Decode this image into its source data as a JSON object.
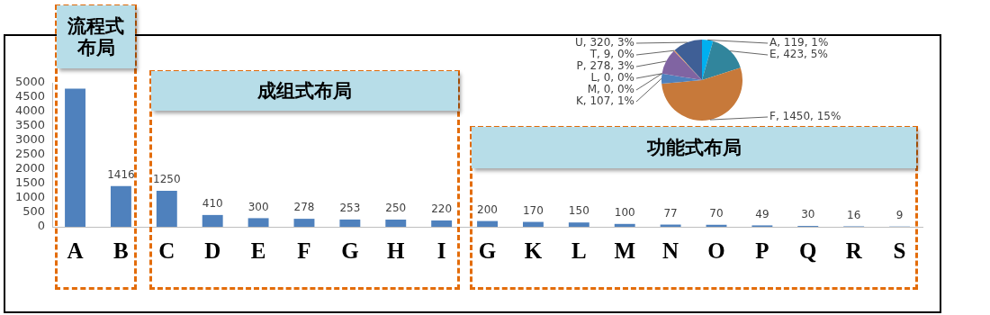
{
  "chart_data": [
    {
      "type": "bar",
      "categories": [
        "A",
        "B",
        "C",
        "D",
        "E",
        "F",
        "G",
        "H",
        "I",
        "G",
        "K",
        "L",
        "M",
        "N",
        "O",
        "P",
        "Q",
        "R",
        "S"
      ],
      "values": [
        4800,
        1416,
        1250,
        410,
        300,
        278,
        253,
        250,
        220,
        200,
        170,
        150,
        100,
        77,
        70,
        49,
        30,
        16,
        9
      ],
      "value_labels": [
        null,
        "1416",
        "1250",
        "410",
        "300",
        "278",
        "253",
        "250",
        "220",
        "200",
        "170",
        "150",
        "100",
        "77",
        "70",
        "49",
        "30",
        "16",
        "9"
      ],
      "color": "#4f81bd",
      "ylim": [
        0,
        5000
      ],
      "yticks": [
        0,
        500,
        1000,
        1500,
        2000,
        2500,
        3000,
        3500,
        4000,
        4500,
        5000
      ],
      "grid": false,
      "legend": false,
      "annotations": [
        "流程式布局",
        "成组式布局",
        "功能式布局"
      ]
    },
    {
      "type": "pie",
      "categories": [
        "A",
        "E",
        "F",
        "K",
        "L",
        "M",
        "P",
        "T",
        "U"
      ],
      "values": [
        119,
        423,
        1450,
        107,
        0,
        0,
        278,
        9,
        320
      ],
      "colors": [
        "#00b0f0",
        "#31859c",
        "#c7793a",
        "#4f81bd",
        "#4bacc6",
        "#2c4d75",
        "#8064a2",
        "#f79646",
        "#3f5f96"
      ],
      "value_labels": [
        ", 119, 1%",
        ", 423, 5%",
        ", 1450, 15%",
        ", 107, 1%",
        ", 0, 0%",
        ", 0, 0%",
        ", 278, 3%",
        ", 9, 0%",
        ", 320, 3%"
      ],
      "legend": false
    }
  ]
}
